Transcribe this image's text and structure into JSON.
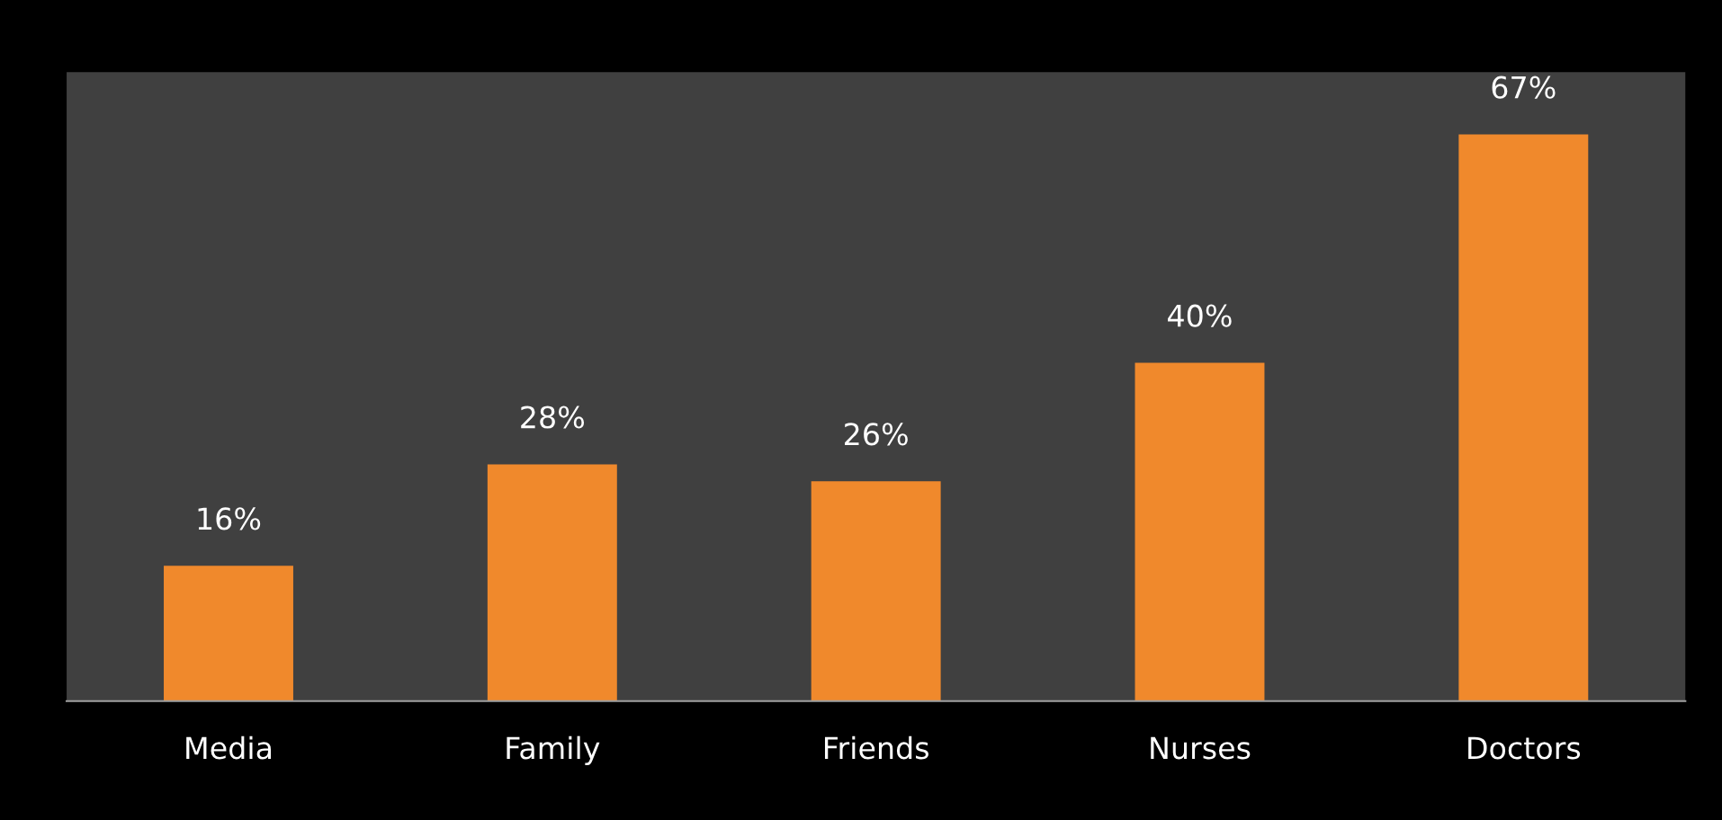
{
  "chart_data": {
    "type": "bar",
    "categories": [
      "Media",
      "Family",
      "Friends",
      "Nurses",
      "Doctors"
    ],
    "values": [
      16,
      28,
      26,
      40,
      67
    ],
    "value_labels": [
      "16%",
      "28%",
      "26%",
      "40%",
      "67%"
    ],
    "color": "#f0892c",
    "grid": false,
    "legend": false,
    "tick_labels": "x"
  }
}
